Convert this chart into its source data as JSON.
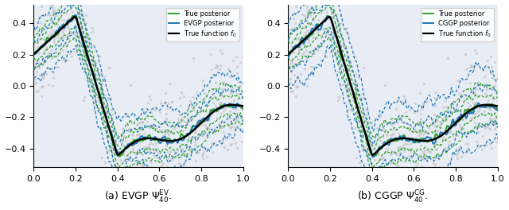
{
  "legend_a": [
    "True posterior",
    "EVGP posterior",
    "True function $f_0$"
  ],
  "legend_b": [
    "True posterior",
    "CGGP posterior",
    "True function $f_0$"
  ],
  "true_color": "#2ca02c",
  "approx_color": "#1f77b4",
  "black_color": "#000000",
  "scatter_color": "#c0c0c0",
  "bg_color": "#e8ecf4",
  "ylim": [
    -0.52,
    0.52
  ],
  "xlim": [
    0.0,
    1.0
  ],
  "seed": 42,
  "n_scatter": 500,
  "n_points": 400
}
